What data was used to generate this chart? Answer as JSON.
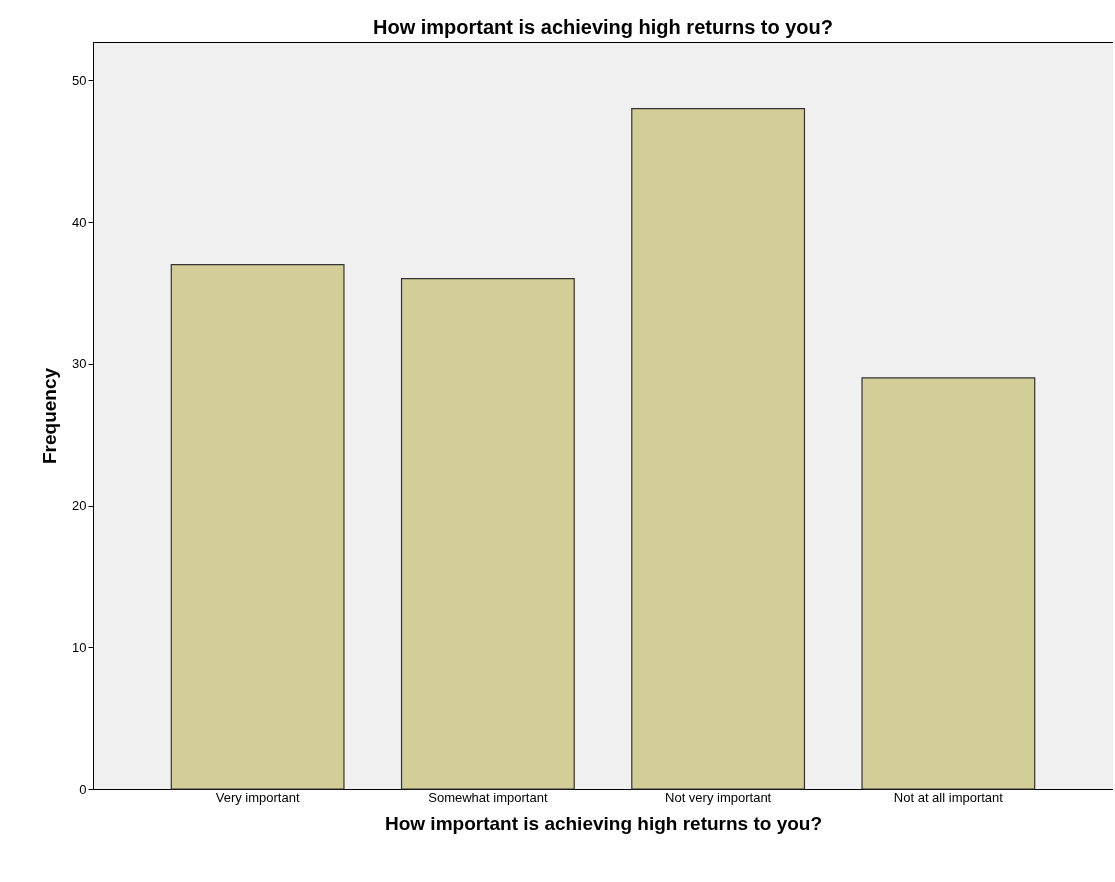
{
  "chart_data": {
    "type": "bar",
    "title": "How important is achieving high returns to you?",
    "xlabel": "How important is achieving high returns to you?",
    "ylabel": "Frequency",
    "categories": [
      "Very important",
      "Somewhat important",
      "Not very important",
      "Not at all important"
    ],
    "values": [
      37,
      36,
      48,
      29
    ],
    "color": "#d3ce97",
    "ylim": [
      0,
      52.7
    ],
    "yticks": [
      0,
      10,
      20,
      30,
      40,
      50
    ],
    "grid": false
  }
}
